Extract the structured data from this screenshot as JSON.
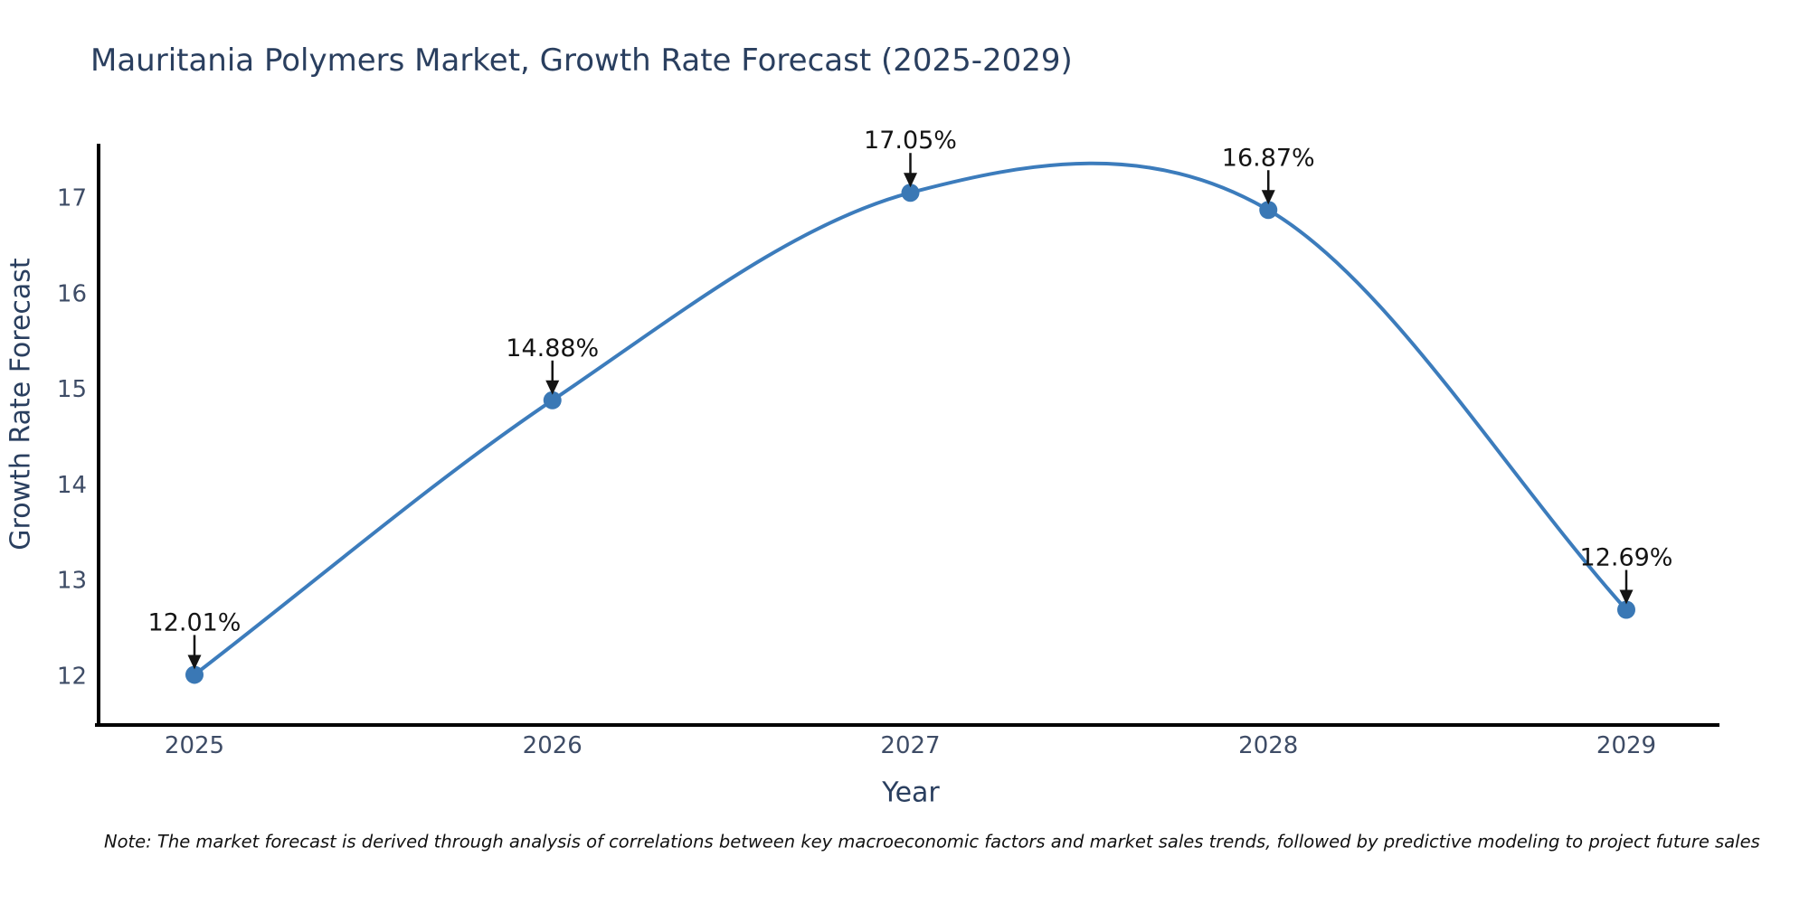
{
  "page": {
    "background": "#ffffff"
  },
  "chart_data": {
    "type": "line",
    "title": "Mauritania Polymers Market, Growth Rate Forecast (2025-2029)",
    "xlabel": "Year",
    "ylabel": "Growth Rate Forecast",
    "x": [
      2025,
      2026,
      2027,
      2028,
      2029
    ],
    "series": [
      {
        "name": "Growth Rate Forecast",
        "values": [
          12.01,
          14.88,
          17.05,
          16.87,
          12.69
        ]
      }
    ],
    "point_labels": [
      "12.01%",
      "14.88%",
      "17.05%",
      "16.87%",
      "12.69%"
    ],
    "yticks": [
      12,
      13,
      14,
      15,
      16,
      17
    ],
    "ylim": [
      11.45,
      17.55
    ],
    "line_shape": "spline",
    "grid": false,
    "legend": "none",
    "colors": {
      "line": "#3c7cbc",
      "marker": "#3a78b5",
      "axis": "#000000",
      "tick_text": "#3e4c66",
      "title_text": "#2a3f5f",
      "annotation": "#141414"
    },
    "note": "Note: The market forecast is derived through analysis of correlations between key macroeconomic factors and market sales trends, followed by predictive modeling to project future sales"
  }
}
